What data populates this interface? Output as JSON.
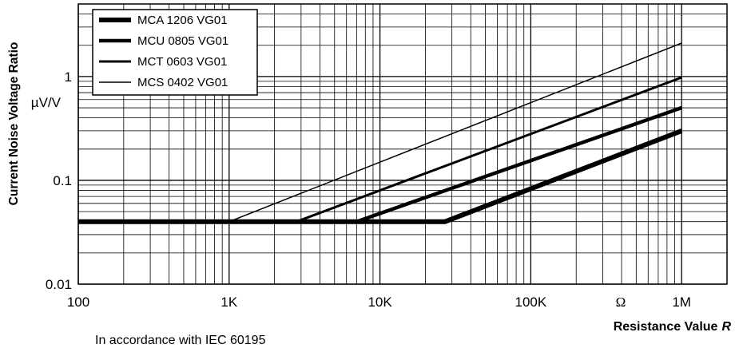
{
  "chart_data": {
    "type": "line",
    "x_scale": "log",
    "y_scale": "log",
    "xlim": [
      100,
      2000000
    ],
    "ylim": [
      0.01,
      5
    ],
    "grid": true,
    "legend_position": "top-left",
    "ylabel": "Current Noise Voltage Ratio",
    "yunit": "µV/V",
    "xlabel": "Resistance Value",
    "xlabel_var": "R",
    "xunit": "Ω",
    "note": "In accordance with IEC 60195",
    "x_ticks": [
      {
        "value": 100,
        "label": "100"
      },
      {
        "value": 1000,
        "label": "1K"
      },
      {
        "value": 10000,
        "label": "10K"
      },
      {
        "value": 100000,
        "label": "100K"
      },
      {
        "value": 1000000,
        "label": "1M"
      }
    ],
    "y_ticks": [
      {
        "value": 0.01,
        "label": "0.01"
      },
      {
        "value": 0.1,
        "label": "0.1"
      },
      {
        "value": 1,
        "label": "1"
      }
    ],
    "series": [
      {
        "name": "MCA 1206 VG01",
        "weight": 4,
        "x": [
          100,
          27000,
          1000000
        ],
        "y": [
          0.04,
          0.04,
          0.3
        ]
      },
      {
        "name": "MCU 0805 VG01",
        "weight": 3,
        "x": [
          100,
          7000,
          1000000
        ],
        "y": [
          0.04,
          0.04,
          0.5
        ]
      },
      {
        "name": "MCT 0603 VG01",
        "weight": 2,
        "x": [
          100,
          2800,
          1000000
        ],
        "y": [
          0.04,
          0.04,
          0.98
        ]
      },
      {
        "name": "MCS 0402 VG01",
        "weight": 1,
        "x": [
          100,
          1000,
          1000000
        ],
        "y": [
          0.04,
          0.04,
          2.1
        ]
      }
    ]
  }
}
